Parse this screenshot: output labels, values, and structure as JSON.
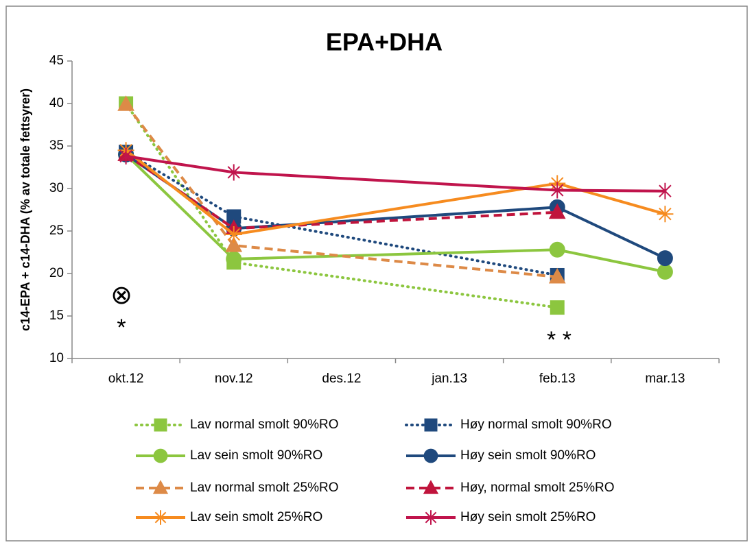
{
  "chart_data": {
    "type": "line",
    "title": "EPA+DHA",
    "y_label": "c14-EPA + c14-DHA (% av totale fettsyrer)",
    "categories": [
      "okt.12",
      "nov.12",
      "des.12",
      "jan.13",
      "feb.13",
      "mar.13"
    ],
    "ylim": [
      10,
      45
    ],
    "yticks": [
      10,
      15,
      20,
      25,
      30,
      35,
      40,
      45
    ],
    "annotations": [
      "⊗",
      "*",
      "* *"
    ],
    "series": [
      {
        "name": "Lav normal smolt 90%RO",
        "color": "#8cc63f",
        "dash": "dotted",
        "marker": "square",
        "x": [
          "okt.12",
          "nov.12",
          "feb.13"
        ],
        "values": [
          40,
          21.3,
          16
        ]
      },
      {
        "name": "Høy normal smolt 90%RO",
        "color": "#1f497d",
        "dash": "dotted",
        "marker": "square",
        "x": [
          "okt.12",
          "nov.12",
          "feb.13"
        ],
        "values": [
          34.3,
          26.7,
          19.8
        ]
      },
      {
        "name": "Lav sein smolt 90%RO",
        "color": "#8cc63f",
        "dash": "solid",
        "marker": "circle",
        "x": [
          "okt.12",
          "nov.12",
          "feb.13",
          "mar.13"
        ],
        "values": [
          34,
          21.7,
          22.8,
          20.2
        ]
      },
      {
        "name": "Høy sein smolt 90%RO",
        "color": "#1f497d",
        "dash": "solid",
        "marker": "circle",
        "x": [
          "okt.12",
          "nov.12",
          "feb.13",
          "mar.13"
        ],
        "values": [
          34,
          25.3,
          27.8,
          21.8
        ]
      },
      {
        "name": "Lav normal smolt 25%RO",
        "color": "#dd8a47",
        "dash": "dashed",
        "marker": "triangle",
        "x": [
          "okt.12",
          "nov.12",
          "feb.13"
        ],
        "values": [
          39.9,
          23.3,
          19.6
        ]
      },
      {
        "name": "Høy, normal smolt 25%RO",
        "color": "#c0143c",
        "dash": "dashed",
        "marker": "triangle",
        "x": [
          "okt.12",
          "nov.12",
          "feb.13"
        ],
        "values": [
          34,
          25.3,
          27.2
        ]
      },
      {
        "name": "Lav sein smolt 25%RO",
        "color": "#f68b1f",
        "dash": "solid",
        "marker": "star",
        "x": [
          "okt.12",
          "nov.12",
          "feb.13",
          "mar.13"
        ],
        "values": [
          34.5,
          24.6,
          30.6,
          27
        ]
      },
      {
        "name": "Høy sein smolt 25%RO",
        "color": "#c0144c",
        "dash": "solid",
        "marker": "asterisk",
        "x": [
          "okt.12",
          "nov.12",
          "feb.13",
          "mar.13"
        ],
        "values": [
          33.8,
          31.9,
          29.8,
          29.7
        ]
      }
    ]
  }
}
